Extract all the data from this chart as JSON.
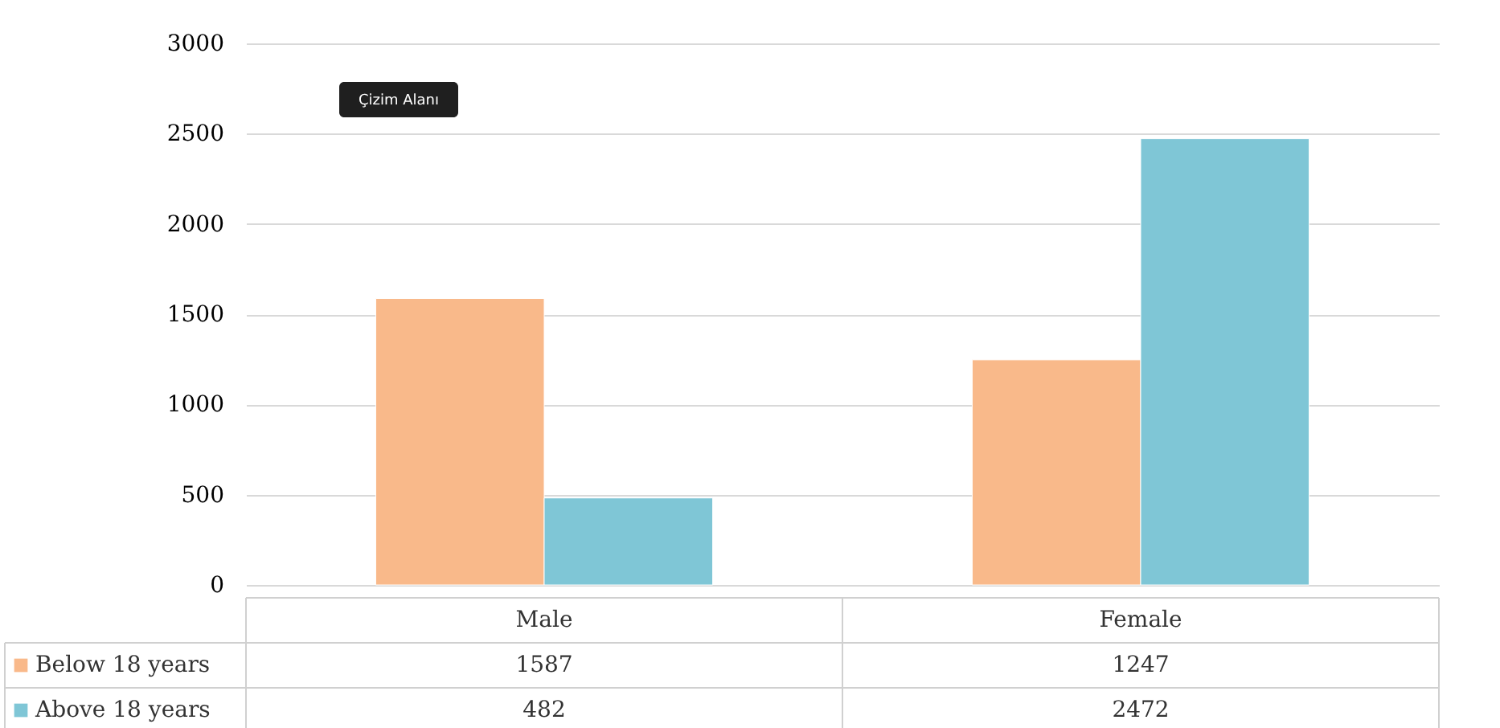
{
  "chart_data": {
    "type": "bar",
    "categories": [
      "Male",
      "Female"
    ],
    "series": [
      {
        "name": "Below 18 years",
        "color": "#f9b98a",
        "values": [
          1587,
          1247
        ]
      },
      {
        "name": "Above 18 years",
        "color": "#7fc6d6",
        "values": [
          482,
          2472
        ]
      }
    ],
    "ylim": [
      0,
      3000
    ],
    "yticks": [
      0,
      500,
      1000,
      1500,
      2000,
      2500,
      3000
    ],
    "grid": "y",
    "legend": "bottom",
    "data_labels": true,
    "annotations": [
      "Çizim Alanı"
    ]
  }
}
